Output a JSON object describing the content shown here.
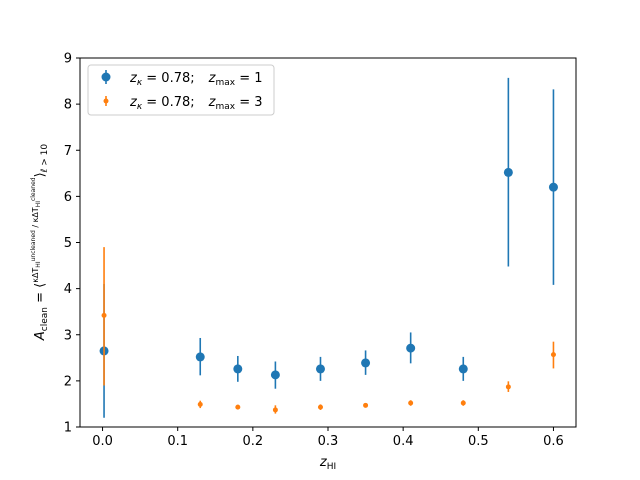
{
  "chart_data": {
    "type": "scatter",
    "xlabel": "z_HI",
    "ylabel": "A_clean = ⟨ κΔT_HI^uncleaned / κΔT_HI^cleaned ⟩_{ℓ>10}",
    "xlim": [
      -0.03,
      0.63
    ],
    "ylim": [
      1,
      9
    ],
    "xticks": [
      0.0,
      0.1,
      0.2,
      0.3,
      0.4,
      0.5,
      0.6
    ],
    "xtick_labels": [
      "0.0",
      "0.1",
      "0.2",
      "0.3",
      "0.4",
      "0.5",
      "0.6"
    ],
    "yticks": [
      1,
      2,
      3,
      4,
      5,
      6,
      7,
      8,
      9
    ],
    "ytick_labels": [
      "1",
      "2",
      "3",
      "4",
      "5",
      "6",
      "7",
      "8",
      "9"
    ],
    "grid": false,
    "legend_position": "upper-left",
    "series": [
      {
        "name": "z_κ = 0.78;    z_max = 1",
        "color": "#1f77b4",
        "marker_size": "large",
        "points": [
          {
            "x": 0.002,
            "y": 2.65,
            "ylow": 1.2,
            "yhigh": 4.1
          },
          {
            "x": 0.13,
            "y": 2.52,
            "ylow": 2.12,
            "yhigh": 2.93
          },
          {
            "x": 0.18,
            "y": 2.26,
            "ylow": 1.98,
            "yhigh": 2.54
          },
          {
            "x": 0.23,
            "y": 2.13,
            "ylow": 1.83,
            "yhigh": 2.42
          },
          {
            "x": 0.29,
            "y": 2.26,
            "ylow": 2.0,
            "yhigh": 2.52
          },
          {
            "x": 0.35,
            "y": 2.39,
            "ylow": 2.13,
            "yhigh": 2.66
          },
          {
            "x": 0.41,
            "y": 2.71,
            "ylow": 2.38,
            "yhigh": 3.05
          },
          {
            "x": 0.48,
            "y": 2.26,
            "ylow": 2.0,
            "yhigh": 2.52
          },
          {
            "x": 0.54,
            "y": 6.52,
            "ylow": 4.48,
            "yhigh": 8.57
          },
          {
            "x": 0.6,
            "y": 6.2,
            "ylow": 4.08,
            "yhigh": 8.32
          }
        ]
      },
      {
        "name": "z_κ = 0.78;    z_max = 3",
        "color": "#ff7f0e",
        "marker_size": "small",
        "points": [
          {
            "x": 0.002,
            "y": 3.42,
            "ylow": 1.9,
            "yhigh": 4.9
          },
          {
            "x": 0.13,
            "y": 1.49,
            "ylow": 1.41,
            "yhigh": 1.57
          },
          {
            "x": 0.18,
            "y": 1.43,
            "ylow": 1.39,
            "yhigh": 1.48
          },
          {
            "x": 0.23,
            "y": 1.37,
            "ylow": 1.29,
            "yhigh": 1.47
          },
          {
            "x": 0.29,
            "y": 1.43,
            "ylow": 1.37,
            "yhigh": 1.49
          },
          {
            "x": 0.35,
            "y": 1.47,
            "ylow": 1.43,
            "yhigh": 1.52
          },
          {
            "x": 0.41,
            "y": 1.52,
            "ylow": 1.46,
            "yhigh": 1.58
          },
          {
            "x": 0.48,
            "y": 1.52,
            "ylow": 1.46,
            "yhigh": 1.58
          },
          {
            "x": 0.54,
            "y": 1.87,
            "ylow": 1.76,
            "yhigh": 1.99
          },
          {
            "x": 0.6,
            "y": 2.57,
            "ylow": 2.27,
            "yhigh": 2.85
          }
        ]
      }
    ]
  }
}
